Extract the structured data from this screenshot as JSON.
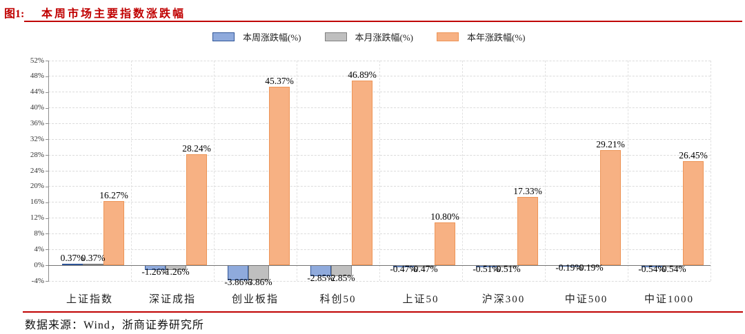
{
  "header": {
    "figure_label": "图1:",
    "title": "本周市场主要指数涨跌幅"
  },
  "chart_data": {
    "type": "bar",
    "title": "本周市场主要指数涨跌幅",
    "xlabel": "",
    "ylabel": "",
    "categories": [
      "上证指数",
      "深证成指",
      "创业板指",
      "科创50",
      "上证50",
      "沪深300",
      "中证500",
      "中证1000"
    ],
    "series": [
      {
        "name": "本周涨跌幅(%)",
        "fill": "#8FAADC",
        "border": "#2F5597",
        "values": [
          0.37,
          -1.26,
          -3.86,
          -2.85,
          -0.47,
          -0.51,
          -0.19,
          -0.54
        ]
      },
      {
        "name": "本月涨跌幅(%)",
        "fill": "#BFBFBF",
        "border": "#7F7F7F",
        "values": [
          0.37,
          -1.26,
          -3.86,
          -2.85,
          -0.47,
          -0.51,
          -0.19,
          -0.54
        ]
      },
      {
        "name": "本年涨跌幅(%)",
        "fill": "#F7B183",
        "border": "#ED9456",
        "values": [
          16.27,
          28.24,
          45.37,
          46.89,
          10.8,
          17.33,
          29.21,
          26.45
        ]
      }
    ],
    "ylim": [
      -4,
      52
    ],
    "y_tick_step": 4,
    "y_tick_suffix": "%",
    "value_label_suffix": "%",
    "grid": true,
    "legend_position": "top"
  },
  "footer": {
    "source": "数据来源：Wind，浙商证券研究所"
  },
  "colors": {
    "accent_red": "#C00000",
    "grid": "#DBDBDB",
    "zero_line": "#737373",
    "axis": "#8C8C8C",
    "label_text": "#000000"
  }
}
